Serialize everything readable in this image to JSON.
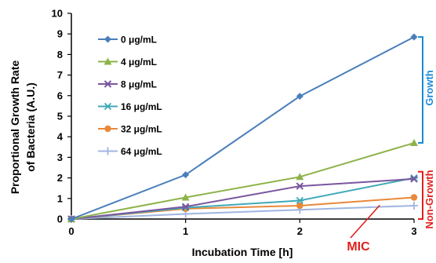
{
  "chart_data": {
    "type": "line",
    "xlabel": "Incubation Time [h]",
    "ylabel_lines": [
      "Proportional Growth Rate",
      "of Bacteria (A.U.)"
    ],
    "x": [
      0,
      1,
      2,
      3
    ],
    "xlim": [
      0,
      3
    ],
    "ylim": [
      0,
      10
    ],
    "x_ticks": [
      "0",
      "1",
      "2",
      "3"
    ],
    "y_ticks": [
      "0",
      "1",
      "2",
      "3",
      "4",
      "5",
      "6",
      "7",
      "8",
      "9",
      "10"
    ],
    "legend_position": "top-left",
    "series": [
      {
        "name": "0 μg/mL",
        "values": [
          0,
          2.15,
          5.97,
          8.85
        ],
        "color": "#4a7ebb",
        "marker": "diamond"
      },
      {
        "name": "4 μg/mL",
        "values": [
          0,
          1.05,
          2.05,
          3.7
        ],
        "color": "#8db34a",
        "marker": "triangle"
      },
      {
        "name": "8 μg/mL",
        "values": [
          0,
          0.6,
          1.6,
          1.95
        ],
        "color": "#7a56a0",
        "marker": "x"
      },
      {
        "name": "16 μg/mL",
        "values": [
          0,
          0.55,
          0.9,
          2.0
        ],
        "color": "#3fa9b7",
        "marker": "asterisk"
      },
      {
        "name": "32 μg/mL",
        "values": [
          0,
          0.5,
          0.65,
          1.05
        ],
        "color": "#e8893a",
        "marker": "circle"
      },
      {
        "name": "64 μg/mL",
        "values": [
          0,
          0.25,
          0.45,
          0.65
        ],
        "color": "#9fb5e0",
        "marker": "plus"
      }
    ],
    "annotations": {
      "growth_label": "Growth",
      "growth_range": [
        3.7,
        8.85
      ],
      "growth_color": "#1c8ad6",
      "nongrowth_label": "Non-Growth",
      "nongrowth_range": [
        0,
        2.3
      ],
      "nongrowth_color": "#e0201c",
      "mic_label": "MIC",
      "mic_color": "#e0201c",
      "mic_points_to": {
        "x": 2.7,
        "y": 0.75
      }
    }
  }
}
